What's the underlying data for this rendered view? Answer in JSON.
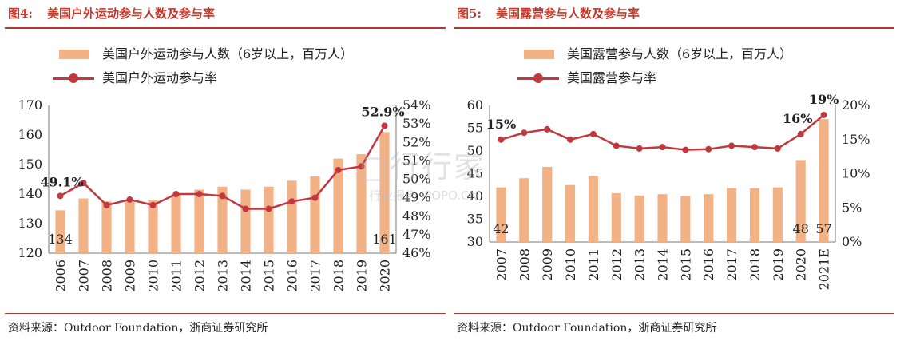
{
  "left": {
    "fig_num": "图4:",
    "fig_title": "美国户外运动参与人数及参与率",
    "legend_bar": "美国户外运动参与人数（6岁以上，百万人）",
    "legend_line": "美国户外运动参与率",
    "source": "资料来源：Outdoor Foundation，浙商证券研究所",
    "bar_color": "#f3b186",
    "line_color": "#c0393f"
  },
  "right": {
    "fig_num": "图5:",
    "fig_title": "美国露营参与人数及参与率",
    "legend_bar": "美国露营参与人数（6岁以上，百万人）",
    "legend_line": "美国露营参与率",
    "source": "资料来源：Outdoor Foundation，浙商证券研究所",
    "bar_color": "#f3b186",
    "line_color": "#c0393f"
  },
  "watermark": {
    "main": "□行行家",
    "sub": "行业报告 IPOPO.CN"
  },
  "chart_data": [
    {
      "type": "bar",
      "categories": [
        "2006",
        "2007",
        "2008",
        "2009",
        "2010",
        "2011",
        "2012",
        "2013",
        "2014",
        "2015",
        "2016",
        "2017",
        "2018",
        "2019",
        "2020"
      ],
      "series": [
        {
          "name": "美国户外运动参与人数（6岁以上，百万人）",
          "type": "bar",
          "values": [
            134.5,
            138.5,
            137.5,
            137.5,
            138,
            140,
            141.5,
            142.5,
            141.5,
            142.5,
            144.5,
            146,
            152,
            153.5,
            161
          ]
        },
        {
          "name": "美国户外运动参与率",
          "type": "line",
          "axis": "right",
          "values": [
            49.1,
            49.8,
            48.6,
            48.9,
            48.6,
            49.2,
            49.2,
            49.1,
            48.4,
            48.4,
            48.8,
            49.0,
            50.5,
            50.7,
            52.9
          ]
        }
      ],
      "ylim": [
        120,
        170
      ],
      "yticks": [
        "120",
        "130",
        "140",
        "150",
        "160",
        "170"
      ],
      "y2lim": [
        46,
        54
      ],
      "y2ticks": [
        "46%",
        "47%",
        "48%",
        "49%",
        "50%",
        "51%",
        "52%",
        "53%",
        "54%"
      ],
      "labels": {
        "bar_first": "134",
        "bar_last": "161",
        "line_first": "49.1%",
        "line_last": "52.9%"
      }
    },
    {
      "type": "bar",
      "categories": [
        "2007",
        "2008",
        "2009",
        "2010",
        "2011",
        "2012",
        "2013",
        "2014",
        "2015",
        "2016",
        "2017",
        "2018",
        "2019",
        "2020",
        "2021E"
      ],
      "series": [
        {
          "name": "美国露营参与人数（6岁以上，百万人）",
          "type": "bar",
          "values": [
            42,
            44,
            46.5,
            42.5,
            44.5,
            40.7,
            40.2,
            40.5,
            40.1,
            40.5,
            41.8,
            41.8,
            42,
            48,
            57
          ]
        },
        {
          "name": "美国露营参与率",
          "type": "line",
          "axis": "right",
          "values": [
            15,
            16,
            16.5,
            15,
            15.8,
            14.1,
            13.7,
            13.9,
            13.5,
            13.6,
            14.1,
            13.9,
            13.7,
            15.8,
            18.6
          ]
        }
      ],
      "ylim": [
        30,
        60
      ],
      "yticks": [
        "30",
        "35",
        "40",
        "45",
        "50",
        "55",
        "60"
      ],
      "y2lim": [
        0,
        20
      ],
      "y2ticks": [
        "0%",
        "5%",
        "10%",
        "15%",
        "20%"
      ],
      "labels": {
        "bar_first": "42",
        "bar_last_a": "48",
        "bar_last": "57",
        "line_first": "15%",
        "line_a": "16%",
        "line_last": "19%"
      }
    }
  ]
}
